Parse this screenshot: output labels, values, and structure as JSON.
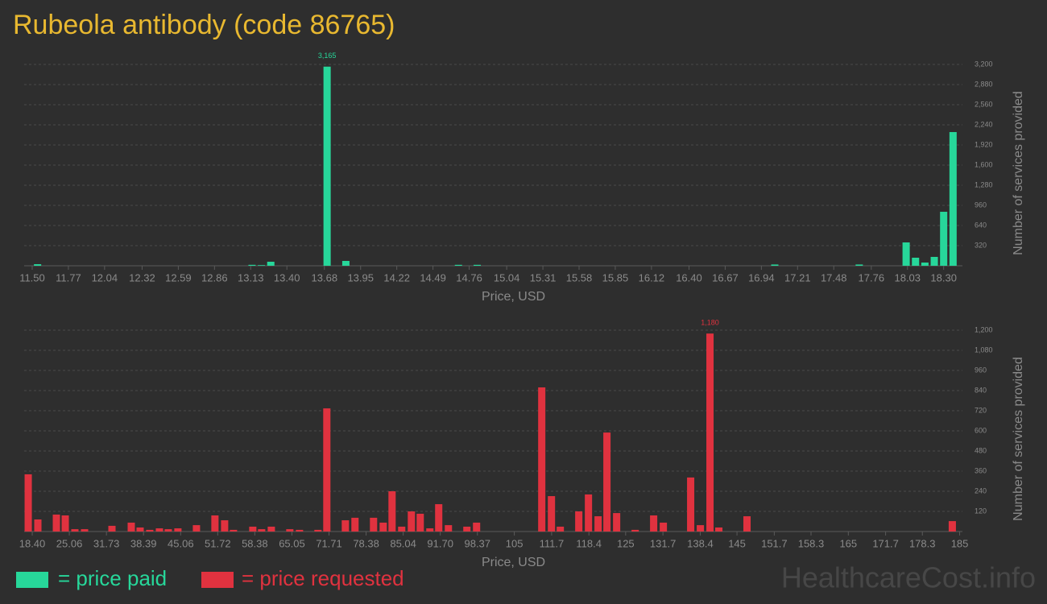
{
  "title": "Rubeola antibody (code 86765)",
  "watermark": "HealthcareCost.info",
  "chart_data": [
    {
      "type": "bar",
      "x_label": "Price, USD",
      "y_label": "Number of services provided",
      "xlim": [
        11.44,
        18.44
      ],
      "xticks": [
        {
          "value": 11.5,
          "label": "11.50"
        },
        11.77,
        12.04,
        12.32,
        12.59,
        12.86,
        13.13,
        {
          "value": 13.4,
          "label": "13.40"
        },
        13.68,
        13.95,
        14.22,
        14.49,
        14.76,
        15.04,
        15.31,
        15.58,
        15.85,
        16.12,
        {
          "value": 16.4,
          "label": "16.40"
        },
        16.67,
        16.94,
        17.21,
        17.48,
        17.76,
        18.03,
        {
          "value": 18.3,
          "label": "18.30"
        }
      ],
      "ylim": [
        0,
        3200
      ],
      "yticks": [
        320,
        640,
        960,
        {
          "value": 1280,
          "label": "1,280"
        },
        {
          "value": 1600,
          "label": "1,600"
        },
        {
          "value": 1920,
          "label": "1,920"
        },
        {
          "value": 2240,
          "label": "2,240"
        },
        {
          "value": 2560,
          "label": "2,560"
        },
        {
          "value": 2880,
          "label": "2,880"
        },
        {
          "value": 3200,
          "label": "3,200"
        }
      ],
      "grid": true,
      "series": [
        {
          "name": "= price paid",
          "color": "#27d79a",
          "x": [
            11.54,
            13.14,
            13.21,
            13.28,
            13.7,
            13.84,
            14.68,
            14.82,
            17.04,
            17.67,
            18.02,
            18.09,
            18.16,
            18.23,
            18.3,
            18.37
          ],
          "values": [
            25,
            15,
            10,
            64,
            3165,
            77,
            15,
            15,
            20,
            20,
            371,
            128,
            51,
            141,
            858,
            2125
          ],
          "value_labels": [
            null,
            null,
            null,
            null,
            "3,165",
            null,
            null,
            null,
            null,
            null,
            null,
            null,
            null,
            null,
            null,
            null
          ]
        }
      ]
    },
    {
      "type": "bar",
      "x_label": "Price, USD",
      "y_label": "Number of services provided",
      "xlim": [
        16.95,
        185.5
      ],
      "xticks": [
        {
          "value": 18.4,
          "label": "18.40"
        },
        25.06,
        31.73,
        38.39,
        45.06,
        51.72,
        58.38,
        65.05,
        71.71,
        78.38,
        85.04,
        {
          "value": 91.7,
          "label": "91.70"
        },
        98.37,
        105,
        111.7,
        118.4,
        125,
        131.7,
        138.4,
        145,
        151.7,
        158.3,
        165,
        171.7,
        178.3,
        185
      ],
      "ylim": [
        0,
        1200
      ],
      "yticks": [
        120,
        240,
        360,
        480,
        600,
        720,
        840,
        960,
        {
          "value": 1080,
          "label": "1,080"
        },
        {
          "value": 1200,
          "label": "1,200"
        }
      ],
      "grid": true,
      "series": [
        {
          "name": "= price requested",
          "color": "#e0323f",
          "x": [
            17.68,
            19.41,
            22.74,
            24.33,
            26.06,
            27.8,
            32.72,
            36.19,
            37.78,
            39.51,
            41.25,
            42.84,
            44.57,
            47.9,
            51.22,
            52.96,
            54.55,
            58.02,
            59.61,
            61.35,
            64.67,
            66.41,
            69.73,
            71.32,
            74.65,
            76.38,
            79.71,
            81.45,
            83.04,
            84.77,
            86.51,
            88.1,
            89.83,
            91.42,
            93.16,
            96.48,
            98.22,
            109.93,
            111.67,
            113.26,
            116.58,
            118.32,
            120.05,
            121.64,
            123.38,
            126.71,
            130.03,
            131.77,
            136.68,
            138.42,
            140.15,
            141.74,
            146.8,
            183.68
          ],
          "values": [
            341,
            72,
            101,
            96,
            14,
            14,
            34,
            53,
            24,
            10,
            19,
            14,
            19,
            38,
            96,
            67,
            10,
            29,
            14,
            29,
            14,
            10,
            10,
            734,
            67,
            82,
            82,
            53,
            240,
            29,
            120,
            106,
            19,
            163,
            38,
            29,
            53,
            859,
            211,
            29,
            120,
            221,
            91,
            590,
            110,
            10,
            96,
            53,
            322,
            38,
            1180,
            24,
            91,
            62
          ],
          "value_labels": [
            null,
            null,
            null,
            null,
            null,
            null,
            null,
            null,
            null,
            null,
            null,
            null,
            null,
            null,
            null,
            null,
            null,
            null,
            null,
            null,
            null,
            null,
            null,
            null,
            null,
            null,
            null,
            null,
            null,
            null,
            null,
            null,
            null,
            null,
            null,
            null,
            null,
            null,
            null,
            null,
            null,
            null,
            null,
            null,
            null,
            null,
            null,
            null,
            null,
            null,
            "1,180",
            null,
            null,
            null
          ]
        }
      ]
    }
  ]
}
